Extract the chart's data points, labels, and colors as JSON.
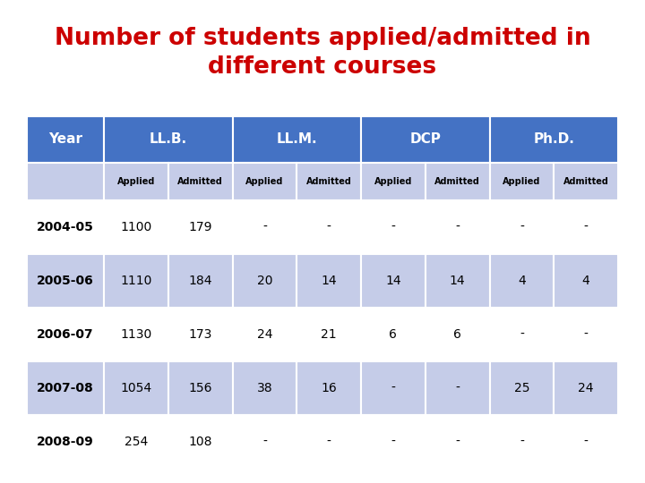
{
  "title_line1": "Number of students applied/admitted in",
  "title_line2": "different courses",
  "title_color": "#cc0000",
  "title_fontsize": 19,
  "header_bg": "#4472c4",
  "header_text_color": "#ffffff",
  "subheader_bg": "#c5cce8",
  "row_colors": [
    "#ffffff",
    "#c5cce8"
  ],
  "col_groups": [
    "Year",
    "LL.B.",
    "LL.M.",
    "DCP",
    "Ph.D."
  ],
  "col_sub": [
    "",
    "Applied",
    "Admitted",
    "Applied",
    "Admitted",
    "Applied",
    "Admitted",
    "Applied",
    "Admitted"
  ],
  "rows": [
    [
      "2004-05",
      "1100",
      "179",
      "-",
      "-",
      "-",
      "-",
      "-",
      "-"
    ],
    [
      "2005-06",
      "1110",
      "184",
      "20",
      "14",
      "14",
      "14",
      "4",
      "4"
    ],
    [
      "2006-07",
      "1130",
      "173",
      "24",
      "21",
      "6",
      "6",
      "-",
      "-"
    ],
    [
      "2007-08",
      "1054",
      "156",
      "38",
      "16",
      "-",
      "-",
      "25",
      "24"
    ],
    [
      "2008-09",
      "254",
      "108",
      "-",
      "-",
      "-",
      "-",
      "-",
      "-"
    ]
  ],
  "background_color": "#ffffff",
  "fig_width": 7.2,
  "fig_height": 5.4,
  "fig_dpi": 100
}
